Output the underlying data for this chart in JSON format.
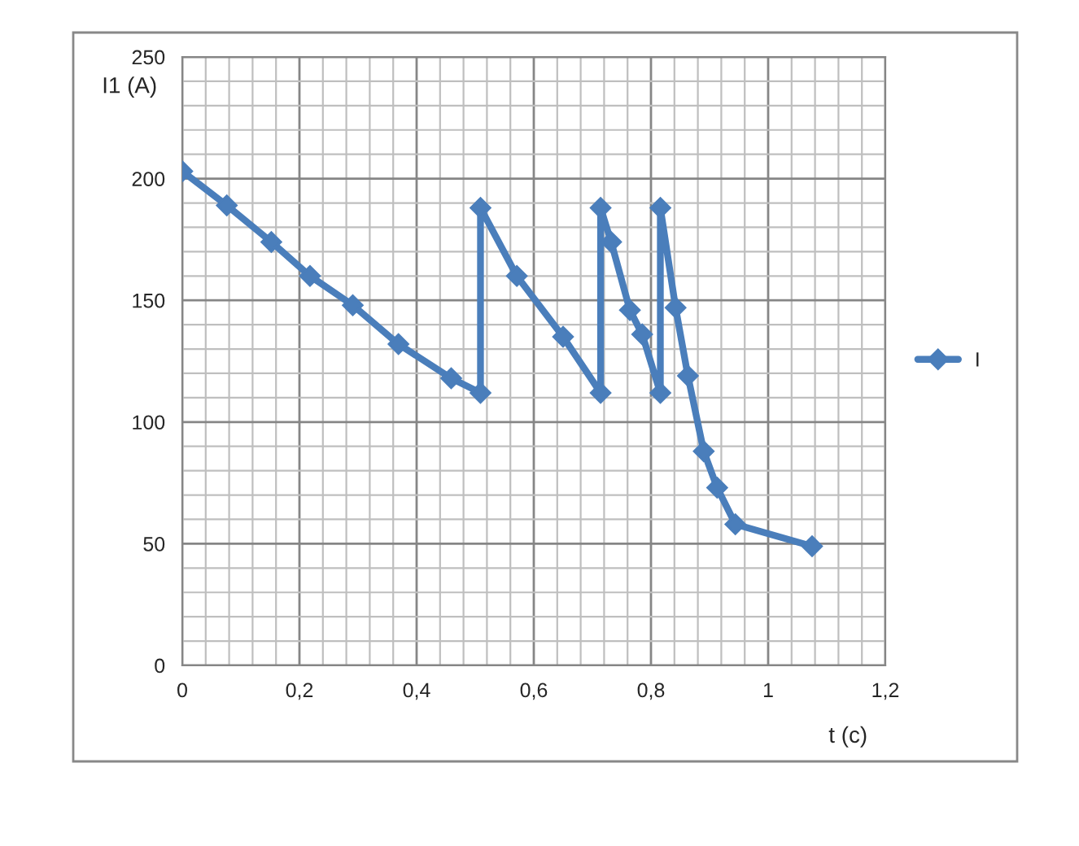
{
  "chart_data": {
    "type": "line",
    "xlabel": "t (c)",
    "ylabel": "I1 (A)",
    "x": [
      0,
      0.076,
      0.152,
      0.218,
      0.291,
      0.369,
      0.459,
      0.509,
      0.509,
      0.571,
      0.65,
      0.714,
      0.714,
      0.732,
      0.764,
      0.785,
      0.816,
      0.816,
      0.842,
      0.863,
      0.89,
      0.913,
      0.944,
      1.075
    ],
    "series": [
      {
        "name": "I",
        "color": "#4a7ebb",
        "values": [
          203,
          189,
          174,
          160,
          148,
          132,
          118,
          112,
          188,
          160,
          135,
          112,
          188,
          174,
          146,
          136,
          112,
          188,
          147,
          119,
          88,
          73,
          58,
          49
        ]
      }
    ],
    "xlim": [
      0,
      1.2
    ],
    "ylim": [
      0,
      250
    ],
    "xticks": [
      0,
      {
        "value": 0.2,
        "label": "0,2"
      },
      {
        "value": 0.4,
        "label": "0,4"
      },
      {
        "value": 0.6,
        "label": "0,6"
      },
      {
        "value": 0.8,
        "label": "0,8"
      },
      1,
      {
        "value": 1.2,
        "label": "1,2"
      }
    ],
    "yticks": [
      0,
      50,
      100,
      150,
      200,
      250
    ],
    "grid": true,
    "legend": "right",
    "marker": "diamond",
    "line_style": "solid"
  }
}
